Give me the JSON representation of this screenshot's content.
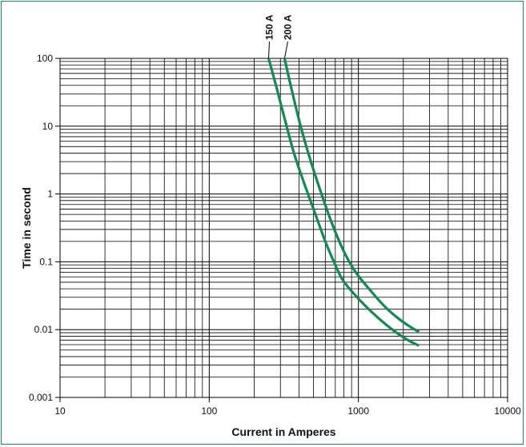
{
  "chart_data": {
    "type": "line",
    "title": "",
    "xlabel": "Current in Amperes",
    "ylabel": "Time in second",
    "x_scale": "log",
    "y_scale": "log",
    "xlim": [
      10,
      10000
    ],
    "ylim": [
      0.001,
      100
    ],
    "grid": true,
    "x_ticks": [
      "10",
      "100",
      "1000",
      "10000"
    ],
    "y_ticks": [
      "0.001",
      "0.01",
      "0.1",
      "1",
      "10",
      "100"
    ],
    "line_color": "#138a4e",
    "series": [
      {
        "name": "150 A",
        "x": [
          250,
          280,
          320,
          370,
          430,
          500,
          600,
          700,
          780,
          900,
          1100,
          1400,
          1800,
          2200,
          2550
        ],
        "y": [
          100,
          40,
          13,
          4,
          1.5,
          0.6,
          0.2,
          0.09,
          0.055,
          0.037,
          0.023,
          0.014,
          0.009,
          0.0068,
          0.0058
        ]
      },
      {
        "name": "200 A",
        "x": [
          320,
          360,
          410,
          470,
          550,
          650,
          760,
          880,
          1000,
          1200,
          1500,
          1900,
          2300,
          2550
        ],
        "y": [
          100,
          32,
          10,
          3.5,
          1.2,
          0.42,
          0.18,
          0.095,
          0.062,
          0.038,
          0.022,
          0.014,
          0.0105,
          0.0093
        ]
      }
    ]
  }
}
